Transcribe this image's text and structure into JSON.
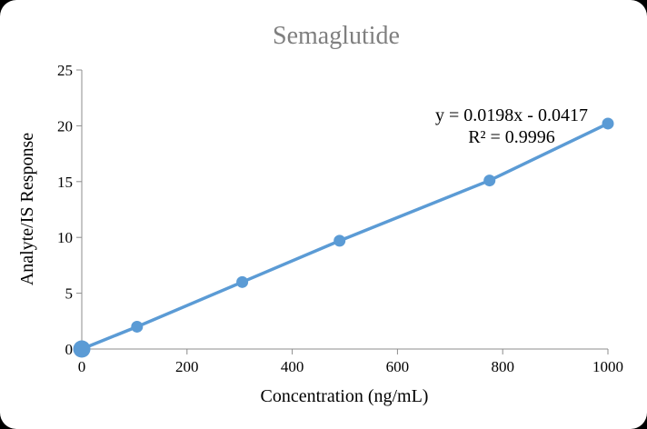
{
  "chart_data": {
    "type": "scatter",
    "title": "Semaglutide",
    "xlabel": "Concentration (ng/mL)",
    "ylabel": "Analyte/IS Response",
    "x": [
      0,
      105,
      305,
      490,
      775,
      1000
    ],
    "y": [
      0,
      2.0,
      6.0,
      9.7,
      15.1,
      20.2
    ],
    "marker_radii": [
      9.5,
      6.5,
      6.5,
      6.5,
      6.5,
      6.5
    ],
    "line_through_points": true,
    "xlim": [
      0,
      1000
    ],
    "ylim": [
      0,
      25
    ],
    "x_ticks": [
      "0",
      "200",
      "400",
      "600",
      "800",
      "1000"
    ],
    "y_ticks": [
      "0",
      "5",
      "10",
      "15",
      "20",
      "25"
    ],
    "grid": false,
    "legend": "none",
    "annotation": {
      "equation": "y = 0.0198x - 0.0417",
      "r_squared": "R² = 0.9996"
    },
    "colors": {
      "series": "#5B9BD5",
      "axis": "#8C8C8C",
      "title": "#7F7F7F",
      "text": "#000000"
    }
  }
}
